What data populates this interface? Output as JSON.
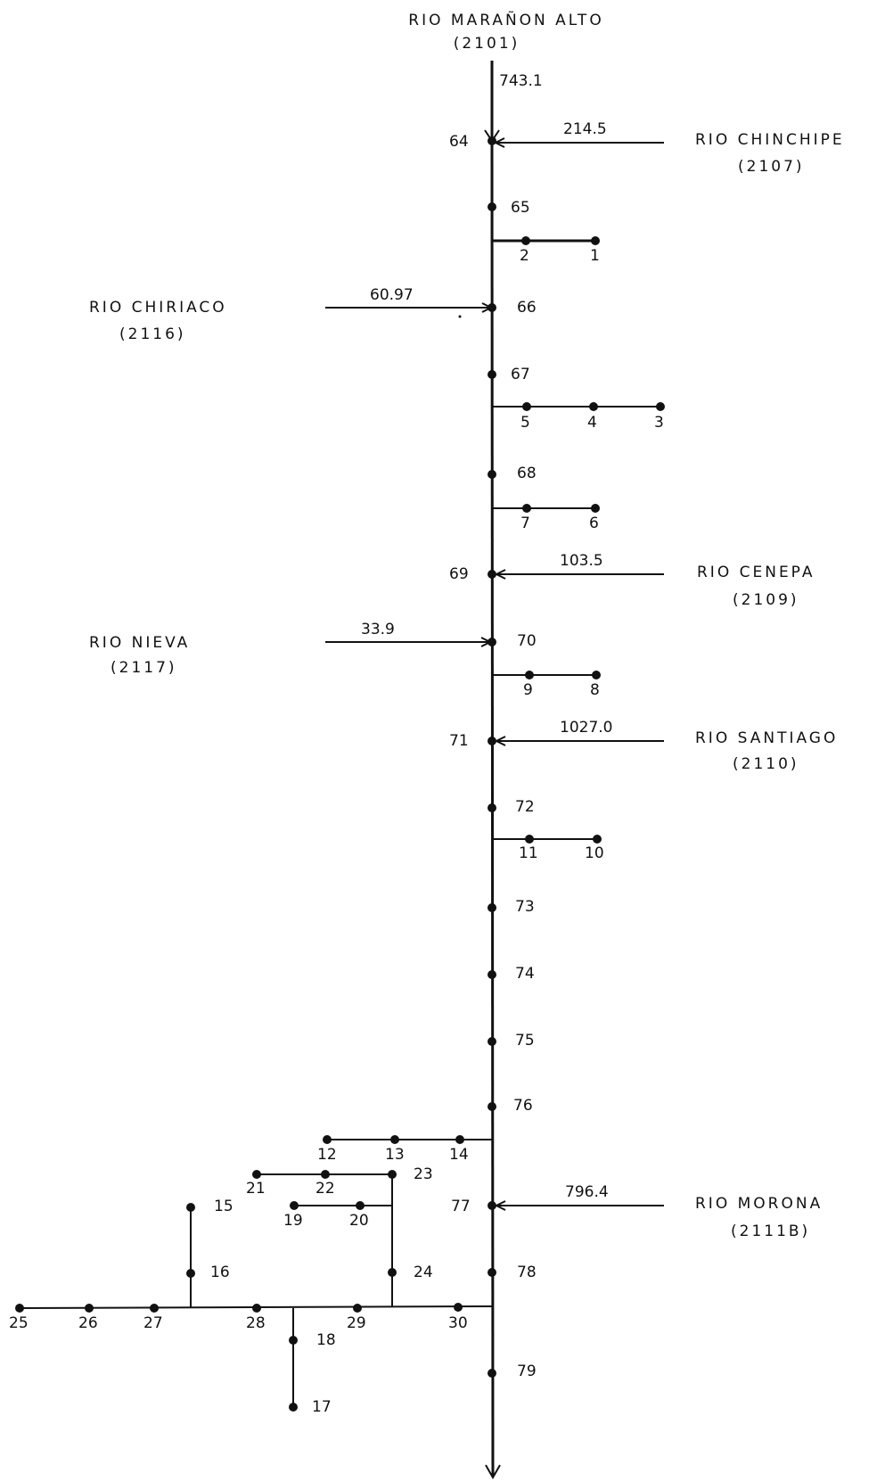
{
  "rivers": {
    "maranon_alto": {
      "name": "RIO MARAÑON ALTO",
      "code": "(2101)",
      "flow": "743.1"
    },
    "chinchipe": {
      "name": "RIO CHINCHIPE",
      "code": "(2107)",
      "flow": "214.5"
    },
    "chiriaco": {
      "name": "RIO CHIRIACO",
      "code": "(2116)",
      "flow": "60.97"
    },
    "cenepa": {
      "name": "RIO CENEPA",
      "code": "(2109)",
      "flow": "103.5"
    },
    "nieva": {
      "name": "RIO NIEVA",
      "code": "(2117)",
      "flow": "33.9"
    },
    "santiago": {
      "name": "RIO SANTIAGO",
      "code": "(2110)",
      "flow": "1027.0"
    },
    "morona": {
      "name": "RIO MORONA",
      "code": "(2111B)",
      "flow": "796.4"
    }
  },
  "nodes": {
    "n1": "1",
    "n2": "2",
    "n3": "3",
    "n4": "4",
    "n5": "5",
    "n6": "6",
    "n7": "7",
    "n8": "8",
    "n9": "9",
    "n10": "10",
    "n11": "11",
    "n12": "12",
    "n13": "13",
    "n14": "14",
    "n15": "15",
    "n16": "16",
    "n17": "17",
    "n18": "18",
    "n19": "19",
    "n20": "20",
    "n21": "21",
    "n22": "22",
    "n23": "23",
    "n24": "24",
    "n25": "25",
    "n26": "26",
    "n27": "27",
    "n28": "28",
    "n29": "29",
    "n30": "30",
    "n64": "64",
    "n65": "65",
    "n66": "66",
    "n67": "67",
    "n68": "68",
    "n69": "69",
    "n70": "70",
    "n71": "71",
    "n72": "72",
    "n73": "73",
    "n74": "74",
    "n75": "75",
    "n76": "76",
    "n77": "77",
    "n78": "78",
    "n79": "79"
  }
}
